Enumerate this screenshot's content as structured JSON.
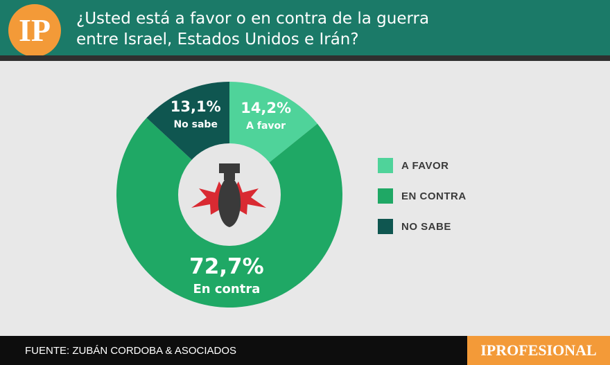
{
  "header": {
    "logo_text": "IP",
    "title_line1": "¿Usted está a favor o en contra de la guerra",
    "title_line2": "entre Israel, Estados Unidos e Irán?"
  },
  "colors": {
    "header_bg": "#1b7a68",
    "a_favor": "#4fd39a",
    "en_contra": "#1fa865",
    "no_sabe": "#0f5650",
    "accent_orange": "#f39a38",
    "background": "#e8e8e8"
  },
  "chart_data": {
    "type": "pie",
    "donut": true,
    "start": "top",
    "slices": [
      {
        "key": "a_favor",
        "value": 14.2,
        "pct_label": "14,2%",
        "label": "A favor",
        "legend": "A FAVOR",
        "color": "#4fd39a"
      },
      {
        "key": "en_contra",
        "value": 72.7,
        "pct_label": "72,7%",
        "label": "En contra",
        "legend": "EN CONTRA",
        "color": "#1fa865"
      },
      {
        "key": "no_sabe",
        "value": 13.1,
        "pct_label": "13,1%",
        "label": "No sabe",
        "legend": "NO SABE",
        "color": "#0f5650"
      }
    ],
    "legend_position": "right",
    "center_icon": "bomb-explosion-icon"
  },
  "footer": {
    "source": "FUENTE: ZUBÁN CORDOBA & ASOCIADOS",
    "brand": "IPROFESIONAL"
  }
}
